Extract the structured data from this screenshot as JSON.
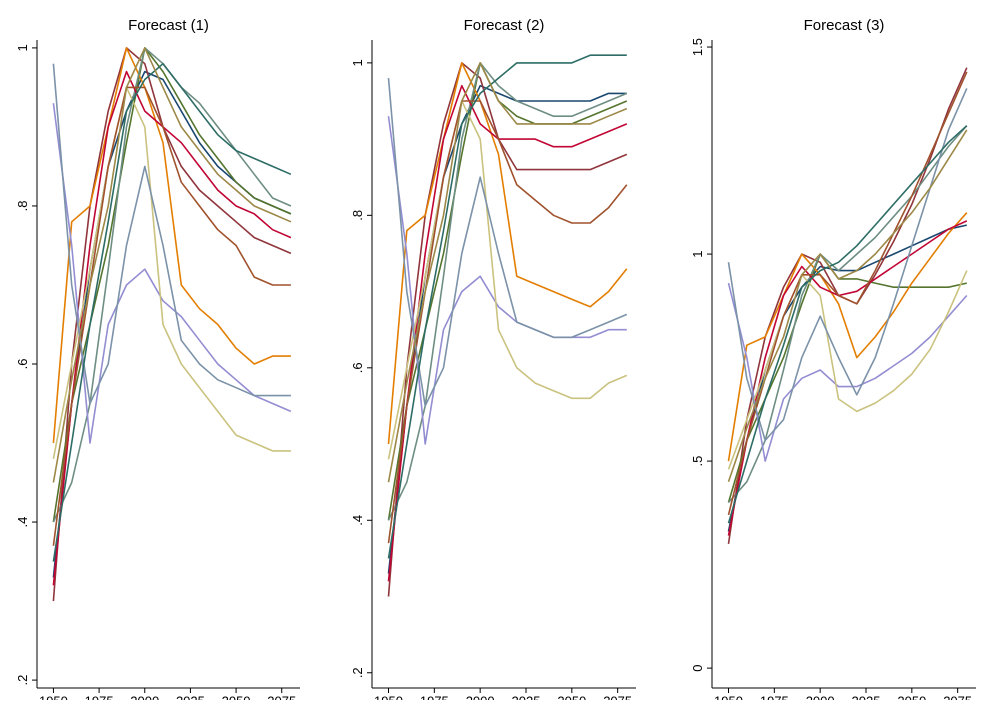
{
  "chart_data": [
    {
      "type": "line",
      "title": "Forecast (1)",
      "x": [
        1950,
        1960,
        1970,
        1980,
        1990,
        2000,
        2010,
        2020,
        2030,
        2040,
        2050,
        2060,
        2070,
        2080
      ],
      "xlim": [
        1941,
        2085
      ],
      "xticks": [
        1950,
        1975,
        2000,
        2025,
        2050,
        2075
      ],
      "ylim": [
        0.19,
        1.01
      ],
      "yticks": [
        {
          "value": 0.2,
          "label": ".2"
        },
        {
          "value": 0.4,
          "label": ".4"
        },
        {
          "value": 0.6,
          "label": ".6"
        },
        {
          "value": 0.8,
          "label": ".8"
        },
        1
      ],
      "series": [
        {
          "color": "#1a476f",
          "values": [
            0.33,
            0.55,
            0.72,
            0.85,
            0.92,
            0.97,
            0.96,
            0.92,
            0.88,
            0.85,
            0.83,
            0.81,
            0.8,
            0.79
          ]
        },
        {
          "color": "#90353b",
          "values": [
            0.3,
            0.6,
            0.8,
            0.92,
            1.0,
            0.98,
            0.9,
            0.85,
            0.82,
            0.8,
            0.78,
            0.76,
            0.75,
            0.74
          ]
        },
        {
          "color": "#55752f",
          "values": [
            0.4,
            0.55,
            0.65,
            0.75,
            0.88,
            1.0,
            0.97,
            0.93,
            0.89,
            0.86,
            0.83,
            0.81,
            0.8,
            0.79
          ]
        },
        {
          "color": "#e37e00",
          "values": [
            0.5,
            0.78,
            0.8,
            0.9,
            1.0,
            0.95,
            0.88,
            0.7,
            0.67,
            0.65,
            0.62,
            0.6,
            0.61,
            0.61
          ]
        },
        {
          "color": "#6e8e84",
          "values": [
            0.4,
            0.45,
            0.55,
            0.72,
            0.9,
            1.0,
            0.98,
            0.95,
            0.93,
            0.9,
            0.87,
            0.84,
            0.81,
            0.8
          ]
        },
        {
          "color": "#c10534",
          "values": [
            0.32,
            0.55,
            0.75,
            0.9,
            0.97,
            0.92,
            0.9,
            0.88,
            0.85,
            0.82,
            0.8,
            0.79,
            0.77,
            0.76
          ]
        },
        {
          "color": "#938dd2",
          "values": [
            0.93,
            0.75,
            0.5,
            0.65,
            0.7,
            0.72,
            0.68,
            0.66,
            0.63,
            0.6,
            0.58,
            0.56,
            0.55,
            0.54
          ]
        },
        {
          "color": "#cac27e",
          "values": [
            0.48,
            0.6,
            0.72,
            0.85,
            0.95,
            0.9,
            0.65,
            0.6,
            0.57,
            0.54,
            0.51,
            0.5,
            0.49,
            0.49
          ]
        },
        {
          "color": "#a0522d",
          "values": [
            0.37,
            0.55,
            0.7,
            0.85,
            0.95,
            0.95,
            0.9,
            0.83,
            0.8,
            0.77,
            0.75,
            0.71,
            0.7,
            0.7
          ]
        },
        {
          "color": "#7b92a8",
          "values": [
            0.98,
            0.7,
            0.55,
            0.6,
            0.75,
            0.85,
            0.75,
            0.63,
            0.6,
            0.58,
            0.57,
            0.56,
            0.56,
            0.56
          ]
        },
        {
          "color": "#2d6d66",
          "values": [
            0.35,
            0.5,
            0.65,
            0.78,
            0.92,
            0.96,
            0.98,
            0.95,
            0.92,
            0.89,
            0.87,
            0.86,
            0.85,
            0.84
          ]
        },
        {
          "color": "#9c8847",
          "values": [
            0.45,
            0.58,
            0.7,
            0.8,
            0.95,
            1.0,
            0.95,
            0.9,
            0.87,
            0.84,
            0.82,
            0.8,
            0.79,
            0.78
          ]
        }
      ]
    },
    {
      "type": "line",
      "title": "Forecast (2)",
      "x": [
        1950,
        1960,
        1970,
        1980,
        1990,
        2000,
        2010,
        2020,
        2030,
        2040,
        2050,
        2060,
        2070,
        2080
      ],
      "xlim": [
        1941,
        2085
      ],
      "xticks": [
        1950,
        1975,
        2000,
        2025,
        2050,
        2075
      ],
      "ylim": [
        0.18,
        1.03
      ],
      "yticks": [
        {
          "value": 0.2,
          "label": ".2"
        },
        {
          "value": 0.4,
          "label": ".4"
        },
        {
          "value": 0.6,
          "label": ".6"
        },
        {
          "value": 0.8,
          "label": ".8"
        },
        1
      ],
      "series": [
        {
          "color": "#1a476f",
          "values": [
            0.33,
            0.55,
            0.72,
            0.85,
            0.92,
            0.97,
            0.96,
            0.95,
            0.95,
            0.95,
            0.95,
            0.95,
            0.96,
            0.96
          ]
        },
        {
          "color": "#90353b",
          "values": [
            0.3,
            0.6,
            0.8,
            0.92,
            1.0,
            0.98,
            0.9,
            0.86,
            0.86,
            0.86,
            0.86,
            0.86,
            0.87,
            0.88
          ]
        },
        {
          "color": "#55752f",
          "values": [
            0.4,
            0.55,
            0.65,
            0.75,
            0.88,
            1.0,
            0.95,
            0.93,
            0.92,
            0.92,
            0.92,
            0.93,
            0.94,
            0.95
          ]
        },
        {
          "color": "#e37e00",
          "values": [
            0.5,
            0.78,
            0.8,
            0.9,
            1.0,
            0.95,
            0.88,
            0.72,
            0.71,
            0.7,
            0.69,
            0.68,
            0.7,
            0.73
          ]
        },
        {
          "color": "#6e8e84",
          "values": [
            0.4,
            0.45,
            0.55,
            0.72,
            0.9,
            1.0,
            0.97,
            0.95,
            0.94,
            0.93,
            0.93,
            0.94,
            0.95,
            0.96
          ]
        },
        {
          "color": "#c10534",
          "values": [
            0.32,
            0.55,
            0.75,
            0.9,
            0.97,
            0.92,
            0.9,
            0.9,
            0.9,
            0.89,
            0.89,
            0.9,
            0.91,
            0.92
          ]
        },
        {
          "color": "#938dd2",
          "values": [
            0.93,
            0.75,
            0.5,
            0.65,
            0.7,
            0.72,
            0.68,
            0.66,
            0.65,
            0.64,
            0.64,
            0.64,
            0.65,
            0.65
          ]
        },
        {
          "color": "#cac27e",
          "values": [
            0.48,
            0.6,
            0.72,
            0.85,
            0.95,
            0.9,
            0.65,
            0.6,
            0.58,
            0.57,
            0.56,
            0.56,
            0.58,
            0.59
          ]
        },
        {
          "color": "#a0522d",
          "values": [
            0.37,
            0.55,
            0.7,
            0.85,
            0.95,
            0.95,
            0.9,
            0.84,
            0.82,
            0.8,
            0.79,
            0.79,
            0.81,
            0.84
          ]
        },
        {
          "color": "#7b92a8",
          "values": [
            0.98,
            0.7,
            0.55,
            0.6,
            0.75,
            0.85,
            0.75,
            0.66,
            0.65,
            0.64,
            0.64,
            0.65,
            0.66,
            0.67
          ]
        },
        {
          "color": "#2d6d66",
          "values": [
            0.35,
            0.5,
            0.65,
            0.78,
            0.92,
            0.96,
            0.98,
            1.0,
            1.0,
            1.0,
            1.0,
            1.01,
            1.01,
            1.01
          ]
        },
        {
          "color": "#9c8847",
          "values": [
            0.45,
            0.58,
            0.7,
            0.8,
            0.95,
            1.0,
            0.95,
            0.92,
            0.92,
            0.92,
            0.92,
            0.92,
            0.93,
            0.94
          ]
        }
      ]
    },
    {
      "type": "line",
      "title": "Forecast (3)",
      "x": [
        1950,
        1960,
        1970,
        1980,
        1990,
        2000,
        2010,
        2020,
        2030,
        2040,
        2050,
        2060,
        2070,
        2080
      ],
      "xlim": [
        1941,
        2085
      ],
      "xticks": [
        1950,
        1975,
        2000,
        2025,
        2050,
        2075
      ],
      "ylim": [
        -0.048,
        1.517
      ],
      "yticks": [
        0,
        {
          "value": 0.5,
          "label": ".5"
        },
        1,
        1.5
      ],
      "series": [
        {
          "color": "#1a476f",
          "values": [
            0.33,
            0.55,
            0.72,
            0.85,
            0.92,
            0.97,
            0.96,
            0.96,
            0.98,
            1.0,
            1.02,
            1.04,
            1.06,
            1.07
          ]
        },
        {
          "color": "#90353b",
          "values": [
            0.3,
            0.6,
            0.8,
            0.92,
            1.0,
            0.98,
            0.9,
            0.88,
            0.95,
            1.03,
            1.12,
            1.23,
            1.35,
            1.45
          ]
        },
        {
          "color": "#55752f",
          "values": [
            0.4,
            0.55,
            0.65,
            0.75,
            0.88,
            1.0,
            0.94,
            0.94,
            0.93,
            0.92,
            0.92,
            0.92,
            0.92,
            0.93
          ]
        },
        {
          "color": "#e37e00",
          "values": [
            0.5,
            0.78,
            0.8,
            0.9,
            1.0,
            0.95,
            0.88,
            0.75,
            0.8,
            0.86,
            0.93,
            0.99,
            1.05,
            1.1
          ]
        },
        {
          "color": "#6e8e84",
          "values": [
            0.4,
            0.45,
            0.55,
            0.72,
            0.9,
            1.0,
            0.96,
            1.0,
            1.04,
            1.09,
            1.14,
            1.2,
            1.26,
            1.31
          ]
        },
        {
          "color": "#c10534",
          "values": [
            0.32,
            0.55,
            0.75,
            0.9,
            0.97,
            0.92,
            0.9,
            0.91,
            0.94,
            0.97,
            1.0,
            1.03,
            1.06,
            1.08
          ]
        },
        {
          "color": "#938dd2",
          "values": [
            0.93,
            0.75,
            0.5,
            0.65,
            0.7,
            0.72,
            0.68,
            0.68,
            0.7,
            0.73,
            0.76,
            0.8,
            0.85,
            0.9
          ]
        },
        {
          "color": "#cac27e",
          "values": [
            0.48,
            0.6,
            0.72,
            0.85,
            0.95,
            0.9,
            0.65,
            0.62,
            0.64,
            0.67,
            0.71,
            0.77,
            0.86,
            0.96
          ]
        },
        {
          "color": "#a0522d",
          "values": [
            0.37,
            0.55,
            0.7,
            0.85,
            0.95,
            0.95,
            0.9,
            0.88,
            0.96,
            1.05,
            1.14,
            1.24,
            1.34,
            1.44
          ]
        },
        {
          "color": "#7b92a8",
          "values": [
            0.98,
            0.7,
            0.55,
            0.6,
            0.75,
            0.85,
            0.75,
            0.66,
            0.75,
            0.88,
            1.02,
            1.16,
            1.3,
            1.4
          ]
        },
        {
          "color": "#2d6d66",
          "values": [
            0.35,
            0.5,
            0.65,
            0.78,
            0.92,
            0.96,
            0.98,
            1.02,
            1.07,
            1.12,
            1.17,
            1.22,
            1.27,
            1.31
          ]
        },
        {
          "color": "#9c8847",
          "values": [
            0.45,
            0.58,
            0.7,
            0.8,
            0.95,
            1.0,
            0.94,
            0.96,
            1.0,
            1.05,
            1.1,
            1.16,
            1.23,
            1.3
          ]
        }
      ]
    }
  ]
}
